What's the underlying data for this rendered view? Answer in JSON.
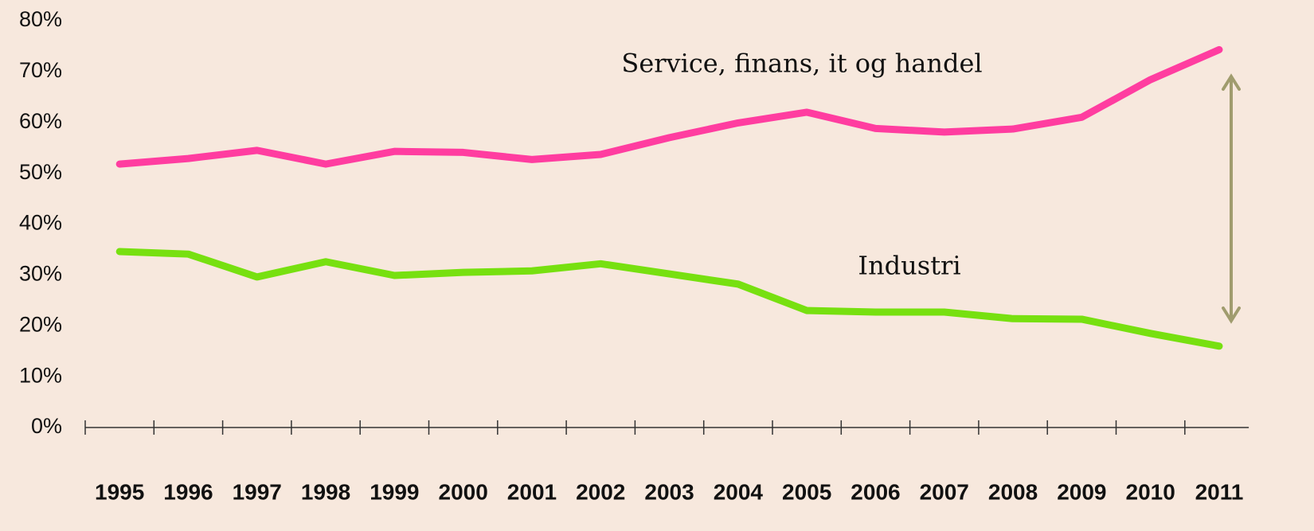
{
  "chart_data": {
    "type": "line",
    "categories": [
      "1995",
      "1996",
      "1997",
      "1998",
      "1999",
      "2000",
      "2001",
      "2002",
      "2003",
      "2004",
      "2005",
      "2006",
      "2007",
      "2008",
      "2009",
      "2010",
      "2011"
    ],
    "series": [
      {
        "name": "Service, finans, it og handel",
        "color": "#ff3da0",
        "values": [
          51.8,
          52.9,
          54.5,
          51.8,
          54.3,
          54.1,
          52.7,
          53.7,
          57.0,
          59.9,
          62.0,
          58.8,
          58.1,
          58.7,
          61.0,
          68.4,
          74.3
        ]
      },
      {
        "name": "Industri",
        "color": "#77e010",
        "values": [
          34.6,
          34.1,
          29.6,
          32.6,
          29.9,
          30.5,
          30.8,
          32.2,
          30.2,
          28.2,
          23.0,
          22.7,
          22.7,
          21.4,
          21.3,
          18.5,
          16.0
        ]
      }
    ],
    "ylim": [
      0,
      80
    ],
    "yticks": [
      {
        "value": 0,
        "label": "0%"
      },
      {
        "value": 10,
        "label": "10%"
      },
      {
        "value": 20,
        "label": "20%"
      },
      {
        "value": 30,
        "label": "30%"
      },
      {
        "value": 40,
        "label": "40%"
      },
      {
        "value": 50,
        "label": "50%"
      },
      {
        "value": 60,
        "label": "60%"
      },
      {
        "value": 70,
        "label": "70%"
      },
      {
        "value": 80,
        "label": "80%"
      }
    ],
    "grid": false
  }
}
